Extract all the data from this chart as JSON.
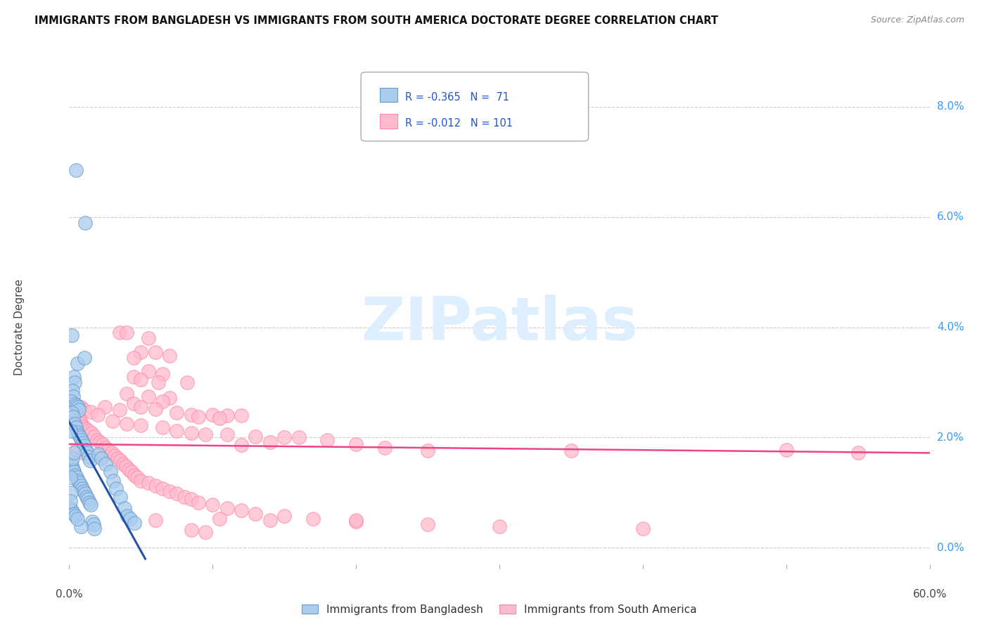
{
  "title": "IMMIGRANTS FROM BANGLADESH VS IMMIGRANTS FROM SOUTH AMERICA DOCTORATE DEGREE CORRELATION CHART",
  "source": "Source: ZipAtlas.com",
  "ylabel": "Doctorate Degree",
  "ytick_labels": [
    "0.0%",
    "2.0%",
    "4.0%",
    "6.0%",
    "8.0%"
  ],
  "ytick_values": [
    0.0,
    2.0,
    4.0,
    6.0,
    8.0
  ],
  "xlim": [
    0.0,
    60.0
  ],
  "ylim": [
    -0.3,
    8.8
  ],
  "legend_blue_R": "-0.365",
  "legend_blue_N": "71",
  "legend_pink_R": "-0.012",
  "legend_pink_N": "101",
  "legend_label_blue": "Immigrants from Bangladesh",
  "legend_label_pink": "Immigrants from South America",
  "watermark": "ZIPatlas",
  "blue_fill": "#aaccee",
  "pink_fill": "#ffbbcc",
  "blue_edge": "#6699cc",
  "pink_edge": "#ff88aa",
  "blue_line_color": "#2255aa",
  "pink_line_color": "#ee4488",
  "blue_scatter": [
    [
      0.45,
      6.85
    ],
    [
      1.1,
      5.9
    ],
    [
      0.18,
      3.85
    ],
    [
      0.55,
      3.35
    ],
    [
      1.05,
      3.45
    ],
    [
      0.3,
      3.1
    ],
    [
      0.38,
      3.0
    ],
    [
      0.22,
      2.85
    ],
    [
      0.28,
      2.75
    ],
    [
      0.15,
      2.65
    ],
    [
      0.42,
      2.6
    ],
    [
      0.52,
      2.58
    ],
    [
      0.6,
      2.55
    ],
    [
      0.68,
      2.5
    ],
    [
      0.18,
      2.45
    ],
    [
      0.25,
      2.38
    ],
    [
      0.35,
      2.25
    ],
    [
      0.45,
      2.18
    ],
    [
      0.55,
      2.1
    ],
    [
      0.65,
      2.05
    ],
    [
      0.75,
      2.0
    ],
    [
      0.85,
      1.95
    ],
    [
      0.95,
      1.9
    ],
    [
      1.05,
      1.85
    ],
    [
      1.15,
      1.78
    ],
    [
      1.25,
      1.72
    ],
    [
      1.35,
      1.65
    ],
    [
      1.45,
      1.58
    ],
    [
      0.12,
      1.55
    ],
    [
      0.18,
      1.5
    ],
    [
      0.25,
      1.42
    ],
    [
      0.32,
      1.38
    ],
    [
      0.42,
      1.32
    ],
    [
      0.52,
      1.28
    ],
    [
      0.62,
      1.22
    ],
    [
      0.72,
      1.18
    ],
    [
      0.82,
      1.12
    ],
    [
      0.92,
      1.08
    ],
    [
      1.02,
      1.02
    ],
    [
      1.12,
      0.98
    ],
    [
      1.22,
      0.92
    ],
    [
      1.32,
      0.88
    ],
    [
      1.42,
      0.82
    ],
    [
      1.52,
      0.78
    ],
    [
      0.1,
      0.72
    ],
    [
      0.2,
      0.68
    ],
    [
      0.3,
      0.62
    ],
    [
      0.42,
      0.58
    ],
    [
      1.6,
      0.48
    ],
    [
      1.7,
      0.42
    ],
    [
      0.8,
      0.38
    ],
    [
      0.55,
      0.52
    ],
    [
      0.22,
      1.62
    ],
    [
      0.32,
      1.72
    ],
    [
      2.05,
      1.7
    ],
    [
      2.25,
      1.62
    ],
    [
      2.55,
      1.52
    ],
    [
      2.85,
      1.38
    ],
    [
      3.05,
      1.22
    ],
    [
      3.25,
      1.08
    ],
    [
      3.55,
      0.92
    ],
    [
      3.85,
      0.72
    ],
    [
      4.05,
      0.58
    ],
    [
      4.25,
      0.52
    ],
    [
      4.55,
      0.45
    ],
    [
      0.15,
      1.0
    ],
    [
      0.08,
      0.85
    ],
    [
      1.75,
      0.35
    ],
    [
      0.1,
      1.28
    ],
    [
      0.08,
      2.12
    ]
  ],
  "pink_scatter": [
    [
      3.5,
      3.9
    ],
    [
      4.0,
      3.9
    ],
    [
      5.5,
      3.8
    ],
    [
      5.0,
      3.55
    ],
    [
      6.0,
      3.55
    ],
    [
      4.5,
      3.45
    ],
    [
      7.0,
      3.48
    ],
    [
      5.5,
      3.2
    ],
    [
      6.5,
      3.15
    ],
    [
      4.5,
      3.1
    ],
    [
      5.0,
      3.05
    ],
    [
      6.2,
      3.0
    ],
    [
      8.2,
      3.0
    ],
    [
      4.0,
      2.8
    ],
    [
      5.5,
      2.75
    ],
    [
      7.0,
      2.72
    ],
    [
      6.5,
      2.65
    ],
    [
      4.5,
      2.62
    ],
    [
      5.0,
      2.55
    ],
    [
      6.0,
      2.52
    ],
    [
      7.5,
      2.45
    ],
    [
      8.5,
      2.42
    ],
    [
      10.0,
      2.42
    ],
    [
      11.0,
      2.4
    ],
    [
      12.0,
      2.4
    ],
    [
      9.0,
      2.38
    ],
    [
      10.5,
      2.35
    ],
    [
      3.0,
      2.3
    ],
    [
      4.0,
      2.25
    ],
    [
      5.0,
      2.22
    ],
    [
      6.5,
      2.18
    ],
    [
      7.5,
      2.12
    ],
    [
      8.5,
      2.08
    ],
    [
      9.5,
      2.06
    ],
    [
      11.0,
      2.06
    ],
    [
      13.0,
      2.02
    ],
    [
      15.0,
      2.0
    ],
    [
      16.0,
      2.0
    ],
    [
      18.0,
      1.96
    ],
    [
      20.0,
      1.88
    ],
    [
      22.0,
      1.82
    ],
    [
      14.0,
      1.92
    ],
    [
      12.0,
      1.86
    ],
    [
      2.5,
      2.55
    ],
    [
      3.5,
      2.5
    ],
    [
      0.8,
      2.55
    ],
    [
      1.0,
      2.5
    ],
    [
      1.5,
      2.46
    ],
    [
      2.0,
      2.42
    ],
    [
      0.55,
      2.4
    ],
    [
      0.65,
      2.36
    ],
    [
      0.75,
      2.3
    ],
    [
      0.85,
      2.25
    ],
    [
      0.95,
      2.2
    ],
    [
      1.15,
      2.16
    ],
    [
      1.35,
      2.12
    ],
    [
      1.55,
      2.08
    ],
    [
      1.75,
      2.02
    ],
    [
      1.95,
      1.96
    ],
    [
      2.15,
      1.92
    ],
    [
      2.35,
      1.88
    ],
    [
      2.55,
      1.82
    ],
    [
      2.75,
      1.78
    ],
    [
      2.95,
      1.72
    ],
    [
      3.15,
      1.68
    ],
    [
      3.35,
      1.62
    ],
    [
      3.55,
      1.58
    ],
    [
      3.75,
      1.52
    ],
    [
      3.95,
      1.48
    ],
    [
      4.15,
      1.42
    ],
    [
      4.35,
      1.38
    ],
    [
      4.55,
      1.32
    ],
    [
      4.75,
      1.28
    ],
    [
      5.0,
      1.22
    ],
    [
      5.5,
      1.18
    ],
    [
      6.0,
      1.12
    ],
    [
      6.5,
      1.08
    ],
    [
      7.0,
      1.02
    ],
    [
      7.5,
      0.98
    ],
    [
      8.0,
      0.92
    ],
    [
      8.5,
      0.88
    ],
    [
      9.0,
      0.82
    ],
    [
      10.0,
      0.78
    ],
    [
      11.0,
      0.72
    ],
    [
      12.0,
      0.68
    ],
    [
      13.0,
      0.62
    ],
    [
      15.0,
      0.58
    ],
    [
      17.0,
      0.52
    ],
    [
      20.0,
      0.48
    ],
    [
      25.0,
      0.42
    ],
    [
      30.0,
      0.38
    ],
    [
      40.0,
      0.35
    ],
    [
      50.0,
      1.78
    ],
    [
      55.0,
      1.72
    ],
    [
      8.5,
      0.32
    ],
    [
      9.5,
      0.28
    ],
    [
      10.5,
      0.52
    ],
    [
      0.5,
      1.78
    ],
    [
      1.0,
      1.72
    ],
    [
      2.0,
      1.68
    ],
    [
      25.0,
      1.76
    ],
    [
      35.0,
      1.76
    ],
    [
      6.0,
      0.5
    ],
    [
      14.0,
      0.5
    ],
    [
      20.0,
      0.5
    ]
  ],
  "blue_trendline": {
    "x_start": 0.0,
    "y_start": 2.28,
    "x_end": 5.3,
    "y_end": -0.2
  },
  "pink_trendline": {
    "x_start": 0.0,
    "y_start": 1.88,
    "x_end": 60.0,
    "y_end": 1.72
  }
}
